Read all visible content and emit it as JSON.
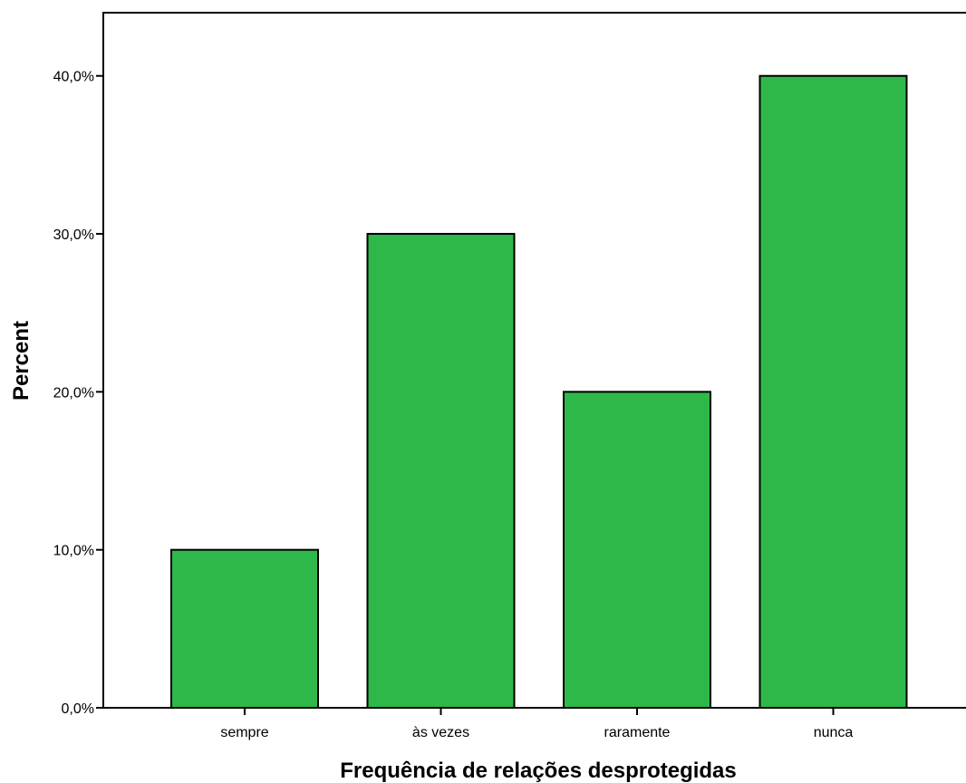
{
  "chart_data": {
    "type": "bar",
    "categories": [
      "sempre",
      "às vezes",
      "raramente",
      "nunca"
    ],
    "values": [
      10,
      30,
      20,
      40
    ],
    "xlabel": "Frequência de relações desprotegidas",
    "ylabel": "Percent",
    "ylim": [
      0,
      44
    ],
    "yticks": [
      0,
      10,
      20,
      30,
      40
    ],
    "ytick_labels": [
      "0,0%",
      "10,0%",
      "20,0%",
      "30,0%",
      "40,0%"
    ],
    "grid": false,
    "legend": false,
    "colors": {
      "bar_fill": "#2eb84a",
      "bar_stroke": "#000000",
      "background": "#ffffff"
    }
  }
}
